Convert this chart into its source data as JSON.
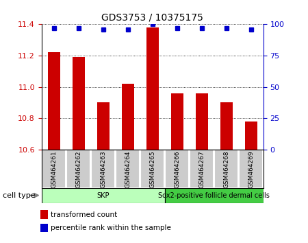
{
  "title": "GDS3753 / 10375175",
  "samples": [
    "GSM464261",
    "GSM464262",
    "GSM464263",
    "GSM464264",
    "GSM464265",
    "GSM464266",
    "GSM464267",
    "GSM464268",
    "GSM464269"
  ],
  "transformed_counts": [
    11.22,
    11.19,
    10.9,
    11.02,
    11.38,
    10.96,
    10.96,
    10.9,
    10.78
  ],
  "percentile_ranks": [
    97,
    97,
    96,
    96,
    100,
    97,
    97,
    97,
    96
  ],
  "ylim_left": [
    10.6,
    11.4
  ],
  "ylim_right": [
    0,
    100
  ],
  "yticks_left": [
    10.6,
    10.8,
    11.0,
    11.2,
    11.4
  ],
  "yticks_right": [
    0,
    25,
    50,
    75,
    100
  ],
  "bar_color": "#cc0000",
  "dot_color": "#0000cc",
  "cell_type_groups": [
    {
      "label": "SKP",
      "start": 0,
      "end": 4,
      "color": "#bbffbb"
    },
    {
      "label": "Sox2-positive follicle dermal cells",
      "start": 5,
      "end": 8,
      "color": "#44cc44"
    }
  ],
  "cell_type_label": "cell type",
  "legend_items": [
    {
      "color": "#cc0000",
      "label": "transformed count"
    },
    {
      "color": "#0000cc",
      "label": "percentile rank within the sample"
    }
  ],
  "grid_linestyle": "dotted",
  "bar_width": 0.5,
  "ylabel_left_color": "#cc0000",
  "ylabel_right_color": "#0000cc",
  "sample_box_color": "#cccccc",
  "sample_box_edge": "#888888"
}
